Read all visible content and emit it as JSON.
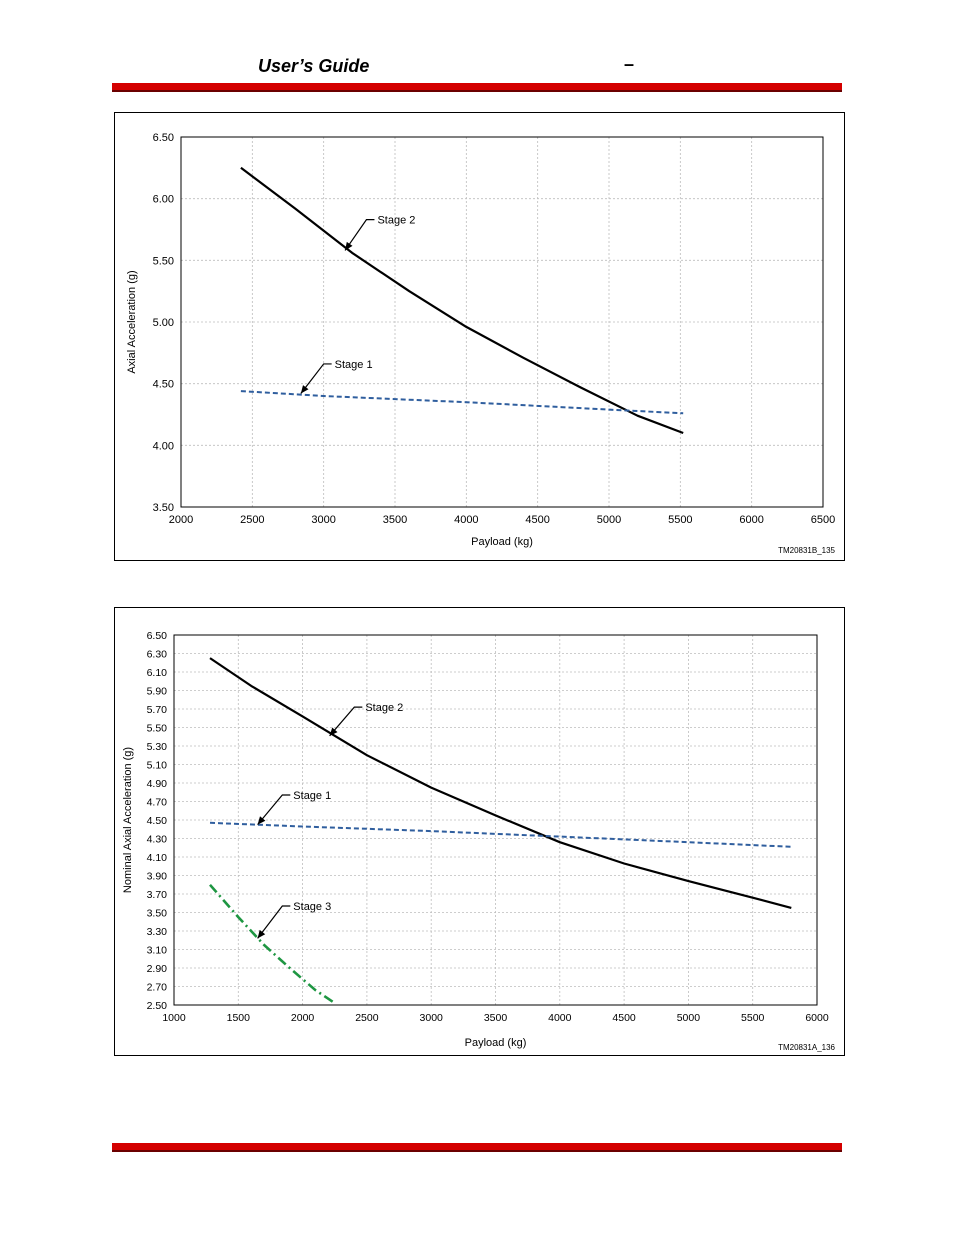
{
  "header": {
    "title": "User’s Guide",
    "dash": "–"
  },
  "colors": {
    "rule": "#d40000",
    "stage1": "#2f5e9e",
    "stage2": "#000000",
    "stage3": "#1e9642",
    "grid": "#bdbdbd"
  },
  "chart_data": [
    {
      "type": "line",
      "xlabel": "Payload (kg)",
      "ylabel": "Axial Acceleration (g)",
      "figure_id": "TM20831B_135",
      "xlim": [
        2000,
        6500
      ],
      "ylim": [
        3.5,
        6.5
      ],
      "xticks": [
        2000,
        2500,
        3000,
        3500,
        4000,
        4500,
        5000,
        5500,
        6000,
        6500
      ],
      "yticks": [
        3.5,
        4.0,
        4.5,
        5.0,
        5.5,
        6.0,
        6.5
      ],
      "x_tick_labels": [
        "2000",
        "2500",
        "3000",
        "3500",
        "4000",
        "4500",
        "5000",
        "5500",
        "6000",
        "6500"
      ],
      "y_tick_labels": [
        "3.50",
        "4.00",
        "4.50",
        "5.00",
        "5.50",
        "6.00",
        "6.50"
      ],
      "series": [
        {
          "name": "Stage 2",
          "style": "solid",
          "color": "#000000",
          "x": [
            2420,
            2800,
            3200,
            3600,
            4000,
            4400,
            4800,
            5200,
            5520
          ],
          "y": [
            6.25,
            5.92,
            5.56,
            5.25,
            4.96,
            4.71,
            4.47,
            4.24,
            4.1
          ]
        },
        {
          "name": "Stage 1",
          "style": "dashed",
          "color": "#2f5e9e",
          "x": [
            2420,
            3000,
            4000,
            5000,
            5520
          ],
          "y": [
            4.44,
            4.4,
            4.35,
            4.29,
            4.26
          ]
        }
      ],
      "annotations": [
        {
          "text": "Stage 2",
          "target": [
            3150,
            5.58
          ],
          "label_at": [
            3370,
            5.83
          ]
        },
        {
          "text": "Stage 1",
          "target": [
            2840,
            4.42
          ],
          "label_at": [
            3070,
            4.66
          ]
        }
      ]
    },
    {
      "type": "line",
      "xlabel": "Payload (kg)",
      "ylabel": "Nominal Axial Acceleration (g)",
      "figure_id": "TM20831A_136",
      "xlim": [
        1000,
        6000
      ],
      "ylim": [
        2.5,
        6.5
      ],
      "xticks": [
        1000,
        1500,
        2000,
        2500,
        3000,
        3500,
        4000,
        4500,
        5000,
        5500,
        6000
      ],
      "yticks": [
        2.5,
        2.7,
        2.9,
        3.1,
        3.3,
        3.5,
        3.7,
        3.9,
        4.1,
        4.3,
        4.5,
        4.7,
        4.9,
        5.1,
        5.3,
        5.5,
        5.7,
        5.9,
        6.1,
        6.3,
        6.5
      ],
      "x_tick_labels": [
        "1000",
        "1500",
        "2000",
        "2500",
        "3000",
        "3500",
        "4000",
        "4500",
        "5000",
        "5500",
        "6000"
      ],
      "y_tick_labels": [
        "2.50",
        "2.70",
        "2.90",
        "3.10",
        "3.30",
        "3.50",
        "3.70",
        "3.90",
        "4.10",
        "4.30",
        "4.50",
        "4.70",
        "4.90",
        "5.10",
        "5.30",
        "5.50",
        "5.70",
        "5.90",
        "6.10",
        "6.30",
        "6.50"
      ],
      "series": [
        {
          "name": "Stage 2",
          "style": "solid",
          "color": "#000000",
          "x": [
            1280,
            1600,
            2000,
            2500,
            3000,
            3500,
            4000,
            4500,
            5000,
            5500,
            5800
          ],
          "y": [
            6.25,
            5.95,
            5.62,
            5.2,
            4.85,
            4.55,
            4.26,
            4.03,
            3.84,
            3.66,
            3.55
          ]
        },
        {
          "name": "Stage 1",
          "style": "dashed",
          "color": "#2f5e9e",
          "x": [
            1280,
            2000,
            3000,
            4000,
            5000,
            5800
          ],
          "y": [
            4.47,
            4.43,
            4.38,
            4.32,
            4.26,
            4.21
          ]
        },
        {
          "name": "Stage 3",
          "style": "dash-dot",
          "color": "#1e9642",
          "x": [
            1280,
            1500,
            1700,
            1900,
            2100,
            2250
          ],
          "y": [
            3.8,
            3.45,
            3.15,
            2.9,
            2.66,
            2.52
          ]
        }
      ],
      "annotations": [
        {
          "text": "Stage 2",
          "target": [
            2210,
            5.41
          ],
          "label_at": [
            2480,
            5.72
          ]
        },
        {
          "text": "Stage 1",
          "target": [
            1650,
            4.45
          ],
          "label_at": [
            1920,
            4.77
          ]
        },
        {
          "text": "Stage 3",
          "target": [
            1650,
            3.22
          ],
          "label_at": [
            1920,
            3.57
          ]
        }
      ]
    }
  ]
}
